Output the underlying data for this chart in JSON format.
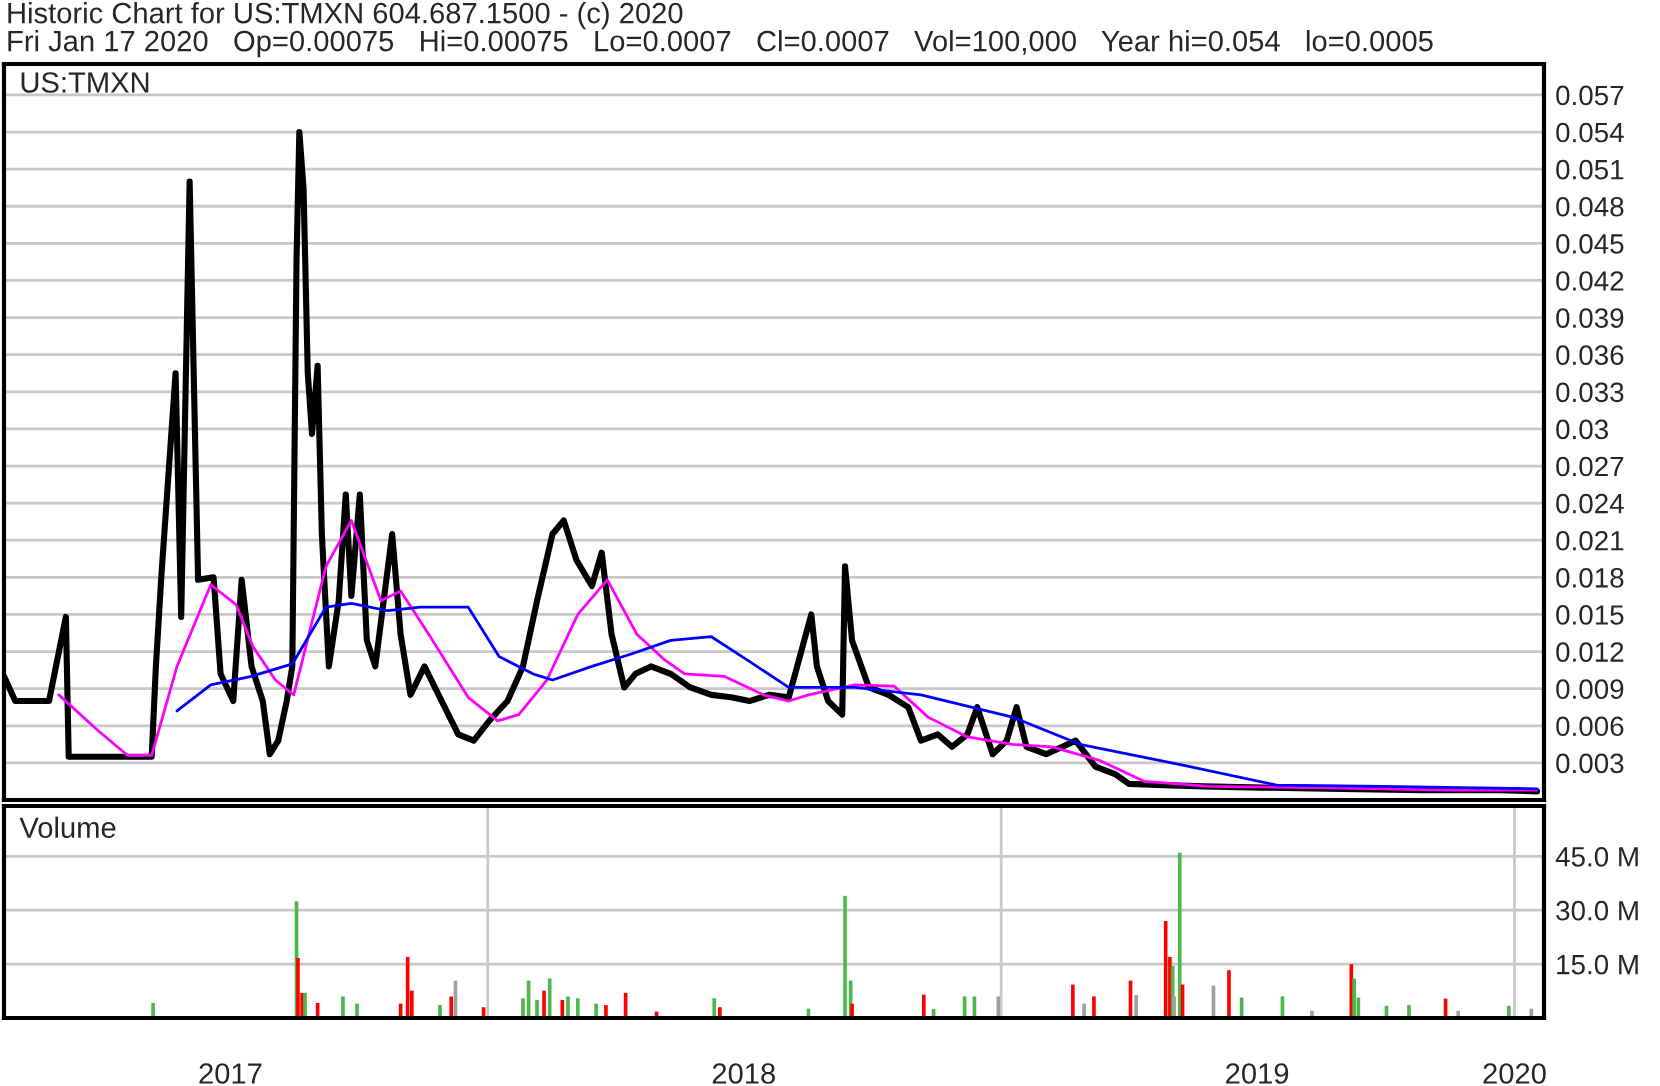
{
  "chart_data": [
    {
      "type": "line",
      "title": "Historic Chart for US:TMXN 604.687.1500 - (c) 2020",
      "subtitle": "Fri Jan 17 2020   Op=0.00075   Hi=0.00075   Lo=0.0007   Cl=0.0007   Vol=100,000   Year hi=0.054   lo=0.0005",
      "annotations": [
        "US:TMXN"
      ],
      "xlim": [
        "2017-01-22",
        "2020-01-22"
      ],
      "ylim": [
        0,
        0.0595
      ],
      "yticks": [
        0.003,
        0.006,
        0.009,
        0.012,
        0.015,
        0.018,
        0.021,
        0.024,
        0.027,
        0.03,
        0.033,
        0.036,
        0.039,
        0.042,
        0.045,
        0.048,
        0.051,
        0.054,
        0.057
      ],
      "tick_labels": "y",
      "grid": "y",
      "series": [
        {
          "color": "#000000",
          "x": [
            "2017-01-22",
            "2017-01-30",
            "2017-02-23",
            "2017-03-07",
            "2017-03-09",
            "2017-05-07",
            "2017-05-10",
            "2017-05-14",
            "2017-05-24",
            "2017-05-28",
            "2017-06-03",
            "2017-06-09",
            "2017-06-20",
            "2017-06-25",
            "2017-07-04",
            "2017-07-10",
            "2017-07-17",
            "2017-07-25",
            "2017-07-30",
            "2017-08-05",
            "2017-08-11",
            "2017-08-15",
            "2017-08-18",
            "2017-08-20",
            "2017-08-23",
            "2017-08-26",
            "2017-08-29",
            "2017-09-02",
            "2017-09-05",
            "2017-09-10",
            "2017-09-17",
            "2017-09-22",
            "2017-09-26",
            "2017-10-02",
            "2017-10-07",
            "2017-10-13",
            "2017-10-25",
            "2017-10-31",
            "2017-11-07",
            "2017-11-17",
            "2017-11-27",
            "2017-12-11",
            "2017-12-22",
            "2018-01-02",
            "2018-01-15",
            "2018-01-26",
            "2018-02-05",
            "2018-02-16",
            "2018-02-24",
            "2018-03-05",
            "2018-03-16",
            "2018-03-23",
            "2018-03-30",
            "2018-04-08",
            "2018-04-16",
            "2018-04-27",
            "2018-05-11",
            "2018-05-25",
            "2018-06-09",
            "2018-06-23",
            "2018-07-06",
            "2018-07-20",
            "2018-08-03",
            "2018-08-19",
            "2018-08-23",
            "2018-08-31",
            "2018-09-10",
            "2018-09-12",
            "2018-09-17",
            "2018-09-29",
            "2018-10-13",
            "2018-10-27",
            "2018-11-05",
            "2018-11-17",
            "2018-11-27",
            "2018-12-08",
            "2018-12-15",
            "2018-12-26",
            "2019-01-05",
            "2019-01-12",
            "2019-01-19",
            "2019-02-02",
            "2019-02-23",
            "2019-03-09",
            "2019-03-23",
            "2019-04-02",
            "2019-04-27",
            "2019-05-25",
            "2019-07-06",
            "2019-08-31",
            "2019-10-27",
            "2019-12-22",
            "2020-01-17"
          ],
          "values": [
            0.01,
            0.008,
            0.008,
            0.0148,
            0.0035,
            0.0035,
            0.0108,
            0.0183,
            0.0345,
            0.0148,
            0.05,
            0.0178,
            0.018,
            0.0102,
            0.008,
            0.0178,
            0.0108,
            0.008,
            0.0037,
            0.0048,
            0.008,
            0.0108,
            0.0437,
            0.054,
            0.0494,
            0.0345,
            0.0296,
            0.0351,
            0.0215,
            0.0108,
            0.0161,
            0.0247,
            0.0165,
            0.0247,
            0.0129,
            0.0108,
            0.0215,
            0.0134,
            0.0085,
            0.0108,
            0.0085,
            0.0053,
            0.0048,
            0.0064,
            0.008,
            0.0108,
            0.0161,
            0.0215,
            0.0226,
            0.0194,
            0.0173,
            0.02,
            0.0134,
            0.0091,
            0.0102,
            0.0108,
            0.0102,
            0.0091,
            0.0085,
            0.0083,
            0.008,
            0.0085,
            0.0083,
            0.015,
            0.0108,
            0.008,
            0.0069,
            0.0189,
            0.0129,
            0.0091,
            0.0085,
            0.0075,
            0.0048,
            0.0053,
            0.0043,
            0.0053,
            0.0075,
            0.0037,
            0.0048,
            0.0075,
            0.0043,
            0.0037,
            0.0048,
            0.0027,
            0.0021,
            0.0013,
            0.0012,
            0.0011,
            0.001,
            0.0009,
            0.0008,
            0.0008,
            0.0007
          ]
        },
        {
          "color": "#ff00ff",
          "x": [
            "2017-03-02",
            "2017-03-30",
            "2017-04-20",
            "2017-05-07",
            "2017-05-25",
            "2017-06-18",
            "2017-07-06",
            "2017-07-18",
            "2017-08-03",
            "2017-08-16",
            "2017-09-08",
            "2017-09-26",
            "2017-10-17",
            "2017-10-31",
            "2017-11-20",
            "2017-12-18",
            "2018-01-08",
            "2018-01-23",
            "2018-02-12",
            "2018-03-06",
            "2018-03-27",
            "2018-04-17",
            "2018-05-07",
            "2018-05-21",
            "2018-06-18",
            "2018-07-16",
            "2018-08-03",
            "2018-08-17",
            "2018-09-19",
            "2018-10-17",
            "2018-11-10",
            "2018-12-08",
            "2019-01-09",
            "2019-02-06",
            "2019-03-12",
            "2019-04-13",
            "2019-05-29",
            "2019-08-13",
            "2019-11-14",
            "2020-01-17"
          ],
          "values": [
            0.0085,
            0.0056,
            0.0036,
            0.0036,
            0.0108,
            0.0174,
            0.0158,
            0.0124,
            0.0097,
            0.0085,
            0.0189,
            0.0226,
            0.0161,
            0.0169,
            0.0134,
            0.0083,
            0.0064,
            0.0069,
            0.0097,
            0.015,
            0.0178,
            0.0134,
            0.0113,
            0.0102,
            0.01,
            0.0085,
            0.008,
            0.0085,
            0.0093,
            0.0092,
            0.0067,
            0.0051,
            0.0045,
            0.0043,
            0.0032,
            0.0015,
            0.0011,
            0.001,
            0.0008,
            0.0008
          ]
        },
        {
          "color": "#0000ff",
          "x": [
            "2017-05-25",
            "2017-06-18",
            "2017-07-17",
            "2017-08-15",
            "2017-09-08",
            "2017-09-26",
            "2017-10-22",
            "2017-11-14",
            "2017-12-18",
            "2018-01-09",
            "2018-02-02",
            "2018-02-16",
            "2018-03-16",
            "2018-04-13",
            "2018-05-11",
            "2018-06-09",
            "2018-07-06",
            "2018-08-03",
            "2018-09-19",
            "2018-11-05",
            "2019-01-09",
            "2019-02-26",
            "2019-05-11",
            "2019-07-16",
            "2019-09-29",
            "2020-01-17"
          ],
          "values": [
            0.0072,
            0.0093,
            0.01,
            0.011,
            0.0156,
            0.0159,
            0.0153,
            0.0156,
            0.0156,
            0.0116,
            0.0102,
            0.0097,
            0.0108,
            0.0118,
            0.0129,
            0.0132,
            0.0112,
            0.0091,
            0.0091,
            0.0085,
            0.0067,
            0.0045,
            0.0028,
            0.0012,
            0.0011,
            0.0009
          ]
        }
      ]
    },
    {
      "type": "bar",
      "title": "Volume",
      "xlim": [
        "2017-01-22",
        "2020-01-22"
      ],
      "ylim": [
        0,
        59
      ],
      "yticks": [
        {
          "value": 15,
          "label": "15.0 M"
        },
        {
          "value": 30,
          "label": "30.0 M"
        },
        {
          "value": 45,
          "label": "45.0 M"
        }
      ],
      "xticks": [
        {
          "value": "2017-07-02",
          "label": "2017"
        },
        {
          "value": "2018-07-02",
          "label": "2018"
        },
        {
          "value": "2019-07-02",
          "label": "2019"
        },
        {
          "value": "2020-01-01",
          "label": "2020"
        }
      ],
      "grid": "y",
      "ref_lines": [
        {
          "axis": "x",
          "value": "2018-01-01",
          "color": "#c8c8c8"
        },
        {
          "axis": "x",
          "value": "2019-01-01",
          "color": "#c8c8c8"
        },
        {
          "axis": "x",
          "value": "2020-01-01",
          "color": "#c8c8c8"
        }
      ],
      "x": [
        "2017-05-08",
        "2017-08-18",
        "2017-08-19",
        "2017-08-22",
        "2017-08-24",
        "2017-09-02",
        "2017-09-20",
        "2017-09-30",
        "2017-10-31",
        "2017-11-05",
        "2017-11-08",
        "2017-11-28",
        "2017-12-06",
        "2017-12-09",
        "2017-12-29",
        "2018-01-26",
        "2018-01-30",
        "2018-02-05",
        "2018-02-10",
        "2018-02-14",
        "2018-02-23",
        "2018-02-27",
        "2018-03-06",
        "2018-03-19",
        "2018-03-26",
        "2018-04-09",
        "2018-05-01",
        "2018-06-11",
        "2018-06-15",
        "2018-08-17",
        "2018-09-12",
        "2018-09-16",
        "2018-09-17",
        "2018-11-07",
        "2018-11-14",
        "2018-12-06",
        "2018-12-13",
        "2018-12-30",
        "2019-02-21",
        "2019-03-01",
        "2019-03-08",
        "2019-04-03",
        "2019-04-07",
        "2019-04-28",
        "2019-05-01",
        "2019-05-03",
        "2019-05-04",
        "2019-05-08",
        "2019-05-10",
        "2019-06-01",
        "2019-06-12",
        "2019-06-21",
        "2019-07-20",
        "2019-08-10",
        "2019-09-07",
        "2019-09-09",
        "2019-09-12",
        "2019-10-02",
        "2019-10-18",
        "2019-11-13",
        "2019-11-22",
        "2019-12-28",
        "2020-01-13"
      ],
      "values": [
        4.2,
        32.5,
        16.7,
        7,
        7,
        4.2,
        6,
        4,
        4,
        17,
        7.6,
        3.6,
        6,
        10.4,
        3,
        5.5,
        10.4,
        5,
        7.6,
        11,
        5,
        6,
        5.5,
        4,
        3.6,
        7,
        1.8,
        5.5,
        3,
        2.6,
        34,
        10.4,
        4,
        6.5,
        2.5,
        6,
        6,
        6,
        9.3,
        4,
        6,
        10.4,
        6.4,
        27,
        17,
        14.5,
        6,
        46,
        9.3,
        9,
        13.3,
        5.7,
        6,
        2,
        15,
        11,
        5.7,
        3.4,
        3.6,
        5.4,
        2,
        3.4,
        2.6
      ],
      "colors": [
        "#4cb84c",
        "#4cb84c",
        "#ff0000",
        "#ff0000",
        "#4cb84c",
        "#ff0000",
        "#4cb84c",
        "#4cb84c",
        "#ff0000",
        "#ff0000",
        "#ff0000",
        "#4cb84c",
        "#ff0000",
        "#a0a0a0",
        "#ff0000",
        "#4cb84c",
        "#4cb84c",
        "#4cb84c",
        "#ff0000",
        "#4cb84c",
        "#ff0000",
        "#4cb84c",
        "#4cb84c",
        "#4cb84c",
        "#ff0000",
        "#ff0000",
        "#ff0000",
        "#4cb84c",
        "#ff0000",
        "#4cb84c",
        "#4cb84c",
        "#4cb84c",
        "#ff0000",
        "#ff0000",
        "#4cb84c",
        "#4cb84c",
        "#4cb84c",
        "#a0a0a0",
        "#ff0000",
        "#a0a0a0",
        "#ff0000",
        "#ff0000",
        "#a0a0a0",
        "#ff0000",
        "#ff0000",
        "#4cb84c",
        "#a0a0a0",
        "#4cb84c",
        "#ff0000",
        "#a0a0a0",
        "#ff0000",
        "#4cb84c",
        "#4cb84c",
        "#a0a0a0",
        "#ff0000",
        "#4cb84c",
        "#4cb84c",
        "#4cb84c",
        "#4cb84c",
        "#ff0000",
        "#a0a0a0",
        "#4cb84c",
        "#a0a0a0"
      ]
    }
  ]
}
